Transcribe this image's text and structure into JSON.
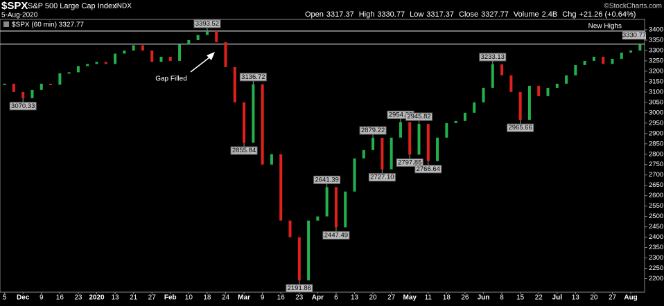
{
  "chart_data": {
    "type": "price-bars",
    "symbol": "$SPX",
    "title": "S&P 500 Large Cap Index",
    "exchange": "INDX",
    "date": "5-Aug-2020",
    "quote": [
      {
        "label": "Open",
        "value": "3317.37"
      },
      {
        "label": "High",
        "value": "3330.77"
      },
      {
        "label": "Low",
        "value": "3317.37"
      },
      {
        "label": "Close",
        "value": "3327.77"
      },
      {
        "label": "Volume",
        "value": "2.4B"
      },
      {
        "label": "Chg",
        "value": "+21.26 (+0.64%)"
      }
    ],
    "credit": "©StockCharts.com",
    "legend_label": "$SPX (60 min) 3327.77",
    "annotations": [
      "New Highs",
      "Gap Filled"
    ],
    "up_color": "#22b14c",
    "down_color": "#e0201b",
    "reference_lines": [
      3393.52,
      3330.77
    ],
    "categories": [
      "5",
      null,
      "Dec",
      null,
      "9",
      null,
      "16",
      null,
      "23",
      null,
      "2020",
      null,
      "13",
      null,
      "21",
      null,
      "27",
      null,
      "Feb",
      null,
      "10",
      null,
      "18",
      null,
      "24",
      null,
      "Mar",
      null,
      "9",
      null,
      "16",
      null,
      "23",
      null,
      "Apr",
      null,
      "6",
      null,
      "13",
      null,
      "20",
      null,
      "27",
      null,
      "May",
      null,
      "11",
      null,
      "18",
      null,
      "26",
      null,
      "Jun",
      null,
      "8",
      null,
      "15",
      null,
      "22",
      null,
      "Jul",
      null,
      "13",
      null,
      "20",
      null,
      "27",
      null,
      "Aug",
      null
    ],
    "values": [
      3140,
      3100,
      3070.33,
      3110,
      3140,
      3135,
      3190,
      3195,
      3225,
      3235,
      3245,
      3235,
      3285,
      3300,
      3325,
      3300,
      3245,
      3270,
      3250,
      3330,
      3350,
      3375,
      3393.52,
      3340,
      3220,
      3050,
      2855.84,
      3136.72,
      2750,
      2800,
      2480,
      2400,
      2191.86,
      2480,
      2500,
      2641.39,
      2447.49,
      2620,
      2780,
      2820,
      2879.22,
      2727.1,
      2880,
      2954.86,
      2797.85,
      2945.82,
      2766.64,
      2880,
      2950,
      2960,
      3000,
      3050,
      3120,
      3233.13,
      3180,
      3100,
      2965.66,
      3130,
      3080,
      3120,
      3140,
      3180,
      3230,
      3250,
      3270,
      3235,
      3260,
      3290,
      3300,
      3327.77
    ],
    "value_labels": [
      null,
      null,
      "3070.33",
      null,
      null,
      null,
      null,
      null,
      null,
      null,
      null,
      null,
      null,
      null,
      null,
      null,
      null,
      null,
      null,
      null,
      null,
      null,
      "3393.52",
      null,
      null,
      null,
      "2855.84",
      "3136.72",
      null,
      null,
      null,
      null,
      "2191.86",
      null,
      null,
      "2641.39",
      "2447.49",
      null,
      null,
      null,
      "2879.22",
      "2727.10",
      null,
      "2954.86",
      "2797.85",
      "2945.82",
      "2766.64",
      null,
      null,
      null,
      null,
      null,
      null,
      "3233.13",
      null,
      null,
      "2965.66",
      null,
      null,
      null,
      null,
      null,
      null,
      null,
      null,
      null,
      null,
      null,
      null,
      null
    ],
    "ylim": [
      2135,
      3450
    ],
    "yticks": [
      2200,
      2250,
      2300,
      2350,
      2400,
      2450,
      2500,
      2550,
      2600,
      2650,
      2700,
      2750,
      2800,
      2850,
      2900,
      2950,
      3000,
      3050,
      3100,
      3150,
      3200,
      3250,
      3300,
      3350,
      3400
    ],
    "grid": false
  }
}
